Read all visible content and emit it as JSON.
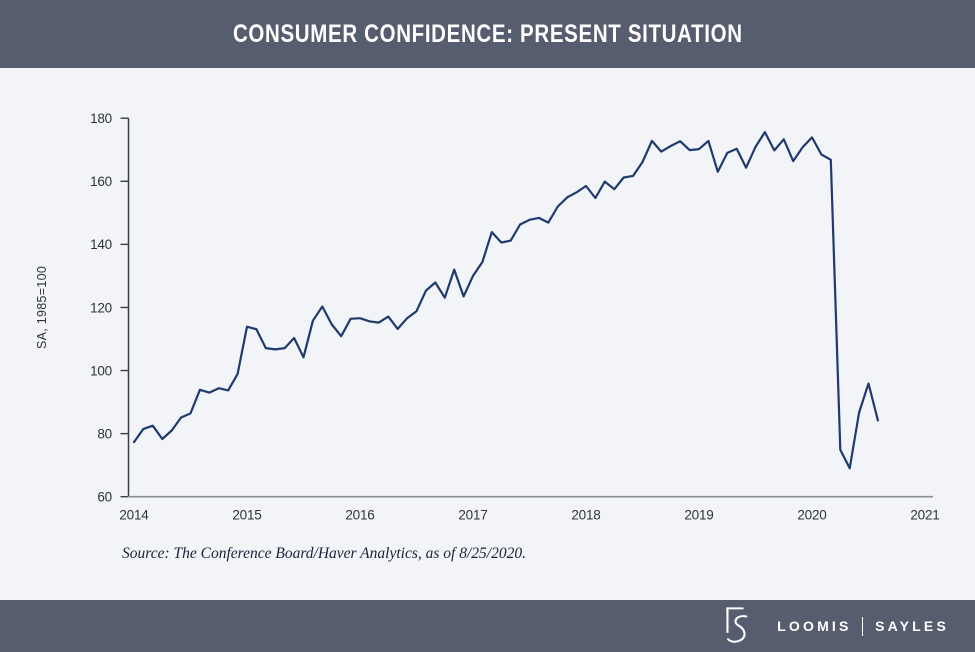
{
  "header": {
    "title": "CONSUMER CONFIDENCE: PRESENT SITUATION"
  },
  "source": {
    "text": "Source: The Conference Board/Haver Analytics, as of 8/25/2020."
  },
  "footer": {
    "brand_left": "LOOMIS",
    "brand_right": "SAYLES",
    "logo": "loomis-sayles-ls-monogram"
  },
  "colors": {
    "bar_slate": "#565d6f",
    "page_bg": "#f3f4f8",
    "line_navy": "#1f3a6e",
    "axis_dark": "#3a3e49",
    "axis_gray": "#8b8e98",
    "tick_text": "#2f323b",
    "title_text": "#ffffff"
  },
  "chart_data": {
    "type": "line",
    "title": "CONSUMER CONFIDENCE: PRESENT SITUATION",
    "xlabel": "",
    "ylabel": "SA, 1985=100",
    "ylim": [
      60,
      180
    ],
    "yticks": [
      60,
      80,
      100,
      120,
      140,
      160,
      180
    ],
    "xticks": [
      "2014",
      "2015",
      "2016",
      "2017",
      "2018",
      "2019",
      "2020",
      "2021"
    ],
    "grid": false,
    "legend_position": "none",
    "line_color": "#1f3a6e",
    "series": [
      {
        "name": "Consumer Confidence: Present Situation (SA, 1985=100)",
        "x": [
          "2014-01",
          "2014-02",
          "2014-03",
          "2014-04",
          "2014-05",
          "2014-06",
          "2014-07",
          "2014-08",
          "2014-09",
          "2014-10",
          "2014-11",
          "2014-12",
          "2015-01",
          "2015-02",
          "2015-03",
          "2015-04",
          "2015-05",
          "2015-06",
          "2015-07",
          "2015-08",
          "2015-09",
          "2015-10",
          "2015-11",
          "2015-12",
          "2016-01",
          "2016-02",
          "2016-03",
          "2016-04",
          "2016-05",
          "2016-06",
          "2016-07",
          "2016-08",
          "2016-09",
          "2016-10",
          "2016-11",
          "2016-12",
          "2017-01",
          "2017-02",
          "2017-03",
          "2017-04",
          "2017-05",
          "2017-06",
          "2017-07",
          "2017-08",
          "2017-09",
          "2017-10",
          "2017-11",
          "2017-12",
          "2018-01",
          "2018-02",
          "2018-03",
          "2018-04",
          "2018-05",
          "2018-06",
          "2018-07",
          "2018-08",
          "2018-09",
          "2018-10",
          "2018-11",
          "2018-12",
          "2019-01",
          "2019-02",
          "2019-03",
          "2019-04",
          "2019-05",
          "2019-06",
          "2019-07",
          "2019-08",
          "2019-09",
          "2019-10",
          "2019-11",
          "2019-12",
          "2020-01",
          "2020-02",
          "2020-03",
          "2020-04",
          "2020-05",
          "2020-06",
          "2020-07",
          "2020-08"
        ],
        "values": [
          77.3,
          81.5,
          82.5,
          78.3,
          81.0,
          85.1,
          86.4,
          93.9,
          93.0,
          94.4,
          93.7,
          98.9,
          113.9,
          113.1,
          107.1,
          106.7,
          107.1,
          110.3,
          104.2,
          115.8,
          120.3,
          114.6,
          110.9,
          116.4,
          116.6,
          115.6,
          115.2,
          117.1,
          113.2,
          116.6,
          118.8,
          125.3,
          127.9,
          123.1,
          132.0,
          123.5,
          130.0,
          134.4,
          143.9,
          140.6,
          141.2,
          146.3,
          147.8,
          148.4,
          146.9,
          152.0,
          154.9,
          156.5,
          158.5,
          154.7,
          159.9,
          157.5,
          161.2,
          161.7,
          166.1,
          172.8,
          169.4,
          171.2,
          172.7,
          169.9,
          170.2,
          172.8,
          163.0,
          169.0,
          170.3,
          164.3,
          170.9,
          175.6,
          169.8,
          173.3,
          166.4,
          170.8,
          173.9,
          168.5,
          166.8,
          74.9,
          69.0,
          86.7,
          95.9,
          84.2
        ]
      }
    ]
  }
}
